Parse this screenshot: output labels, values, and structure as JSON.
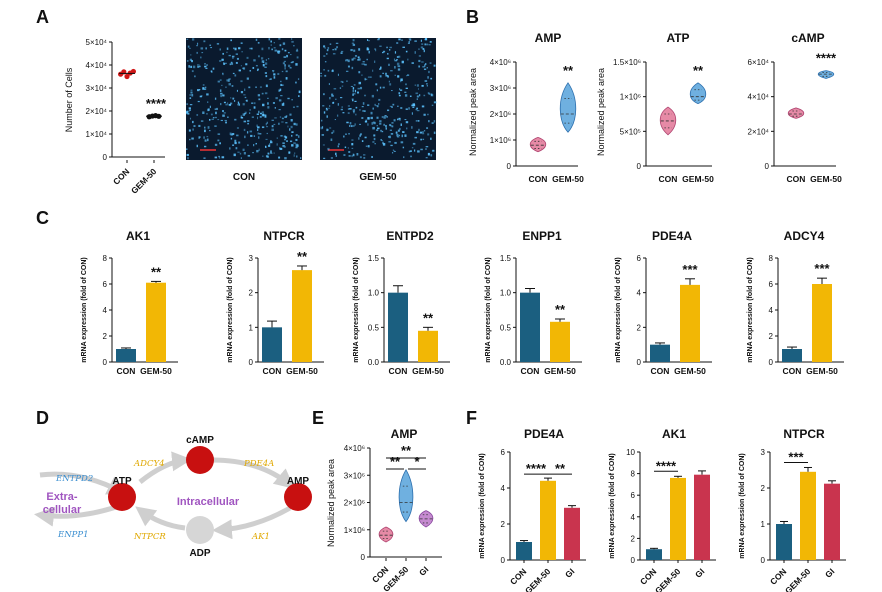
{
  "panel_letters": [
    "A",
    "B",
    "C",
    "D",
    "E",
    "F"
  ],
  "colors": {
    "con": "#1b5f80",
    "gem": "#f2b705",
    "gi": "#c9344e",
    "red": "#d01717",
    "violin_con": "#e68aa6",
    "violin_gem": "#6fb0e0",
    "violin_gi": "#c58ad0",
    "micro_bg": "#0a1a2e",
    "micro_dot": "#5cc3ff"
  },
  "panelA": {
    "ylabel": "Number of Cells",
    "yticks": [
      "0",
      "1×10⁴",
      "2×10⁴",
      "3×10⁴",
      "4×10⁴",
      "5×10⁴"
    ],
    "categories": [
      "CON",
      "GEM-50"
    ],
    "sig": "****",
    "image_labels": [
      "CON",
      "GEM-50"
    ]
  },
  "panelB": [
    {
      "title": "AMP",
      "ylabel": "Normalized peak area",
      "yticks": [
        "0",
        "1×10⁶",
        "2×10⁶",
        "3×10⁶",
        "4×10⁶"
      ],
      "sig": "**",
      "categories": [
        "CON",
        "GEM-50"
      ]
    },
    {
      "title": "ATP",
      "ylabel": "Normalized peak area",
      "yticks": [
        "0",
        "5×10⁵",
        "1×10⁶",
        "1.5×10⁶"
      ],
      "sig": "**",
      "categories": [
        "CON",
        "GEM-50"
      ]
    },
    {
      "title": "cAMP",
      "ylabel": "",
      "yticks": [
        "0",
        "2×10⁴",
        "4×10⁴",
        "6×10⁴"
      ],
      "sig": "****",
      "categories": [
        "CON",
        "GEM-50"
      ]
    }
  ],
  "panelC_ylabel": "mRNA expression (fold of CON)",
  "panelC": [
    {
      "title": "AK1",
      "yticks": [
        "0",
        "2",
        "4",
        "6",
        "8"
      ],
      "sig": "**",
      "categories": [
        "CON",
        "GEM-50"
      ]
    },
    {
      "title": "NTPCR",
      "yticks": [
        "0",
        "1",
        "2",
        "3"
      ],
      "sig": "**",
      "categories": [
        "CON",
        "GEM-50"
      ]
    },
    {
      "title": "ENTPD2",
      "yticks": [
        "0.0",
        "0.5",
        "1.0",
        "1.5"
      ],
      "sig": "**",
      "categories": [
        "CON",
        "GEM-50"
      ]
    },
    {
      "title": "ENPP1",
      "yticks": [
        "0.0",
        "0.5",
        "1.0",
        "1.5"
      ],
      "sig": "**",
      "categories": [
        "CON",
        "GEM-50"
      ]
    },
    {
      "title": "PDE4A",
      "yticks": [
        "0",
        "2",
        "4",
        "6"
      ],
      "sig": "***",
      "categories": [
        "CON",
        "GEM-50"
      ]
    },
    {
      "title": "ADCY4",
      "yticks": [
        "0",
        "2",
        "4",
        "6",
        "8"
      ],
      "sig": "***",
      "categories": [
        "CON",
        "GEM-50"
      ]
    }
  ],
  "panelD": {
    "extracellular": "Extra-\ncellular",
    "intracellular": "Intracellular",
    "nodes": {
      "atp": "ATP",
      "camp": "cAMP",
      "amp": "AMP",
      "adp": "ADP"
    },
    "enzymes": {
      "entpd2": "ENTPD2",
      "enpp1": "ENPP1",
      "adcy4": "ADCY4",
      "pde4a": "PDE4A",
      "ntpcr": "NTPCR",
      "ak1": "AK1"
    }
  },
  "panelE": {
    "title": "AMP",
    "ylabel": "Normalized peak area",
    "yticks": [
      "0",
      "1×10⁶",
      "2×10⁶",
      "3×10⁶",
      "4×10⁶"
    ],
    "categories": [
      "CON",
      "GEM-50",
      "GI"
    ],
    "sig": [
      "**",
      "**",
      "*"
    ]
  },
  "panelF": [
    {
      "title": "PDE4A",
      "yticks": [
        "0",
        "2",
        "4",
        "6"
      ],
      "sig": [
        "****",
        "**"
      ],
      "categories": [
        "CON",
        "GEM-50",
        "GI"
      ]
    },
    {
      "title": "AK1",
      "yticks": [
        "0",
        "2",
        "4",
        "6",
        "8",
        "10"
      ],
      "sig": [
        "****"
      ],
      "categories": [
        "CON",
        "GEM-50",
        "GI"
      ]
    },
    {
      "title": "NTPCR",
      "yticks": [
        "0",
        "1",
        "2",
        "3"
      ],
      "sig": [
        "***"
      ],
      "categories": [
        "CON",
        "GEM-50",
        "GI"
      ]
    }
  ],
  "chart_data": [
    {
      "id": "A",
      "type": "scatter",
      "title": "",
      "ylabel": "Number of Cells",
      "categories": [
        "CON",
        "GEM-50"
      ],
      "ylim": [
        0,
        50000
      ],
      "series": [
        {
          "name": "CON",
          "values": [
            36000,
            37000,
            35000,
            36500,
            37200
          ]
        },
        {
          "name": "GEM-50",
          "values": [
            17500,
            17800,
            18000,
            17700
          ]
        }
      ]
    },
    {
      "id": "B-AMP",
      "type": "violin",
      "title": "AMP",
      "ylabel": "Normalized peak area",
      "categories": [
        "CON",
        "GEM-50"
      ],
      "ylim": [
        0,
        4000000
      ],
      "medians": [
        800000,
        2000000
      ],
      "ranges": [
        [
          550000,
          1100000
        ],
        [
          1300000,
          3200000
        ]
      ]
    },
    {
      "id": "B-ATP",
      "type": "violin",
      "title": "ATP",
      "ylabel": "Normalized peak area",
      "categories": [
        "CON",
        "GEM-50"
      ],
      "ylim": [
        0,
        1500000
      ],
      "medians": [
        650000,
        1000000
      ],
      "ranges": [
        [
          450000,
          850000
        ],
        [
          900000,
          1200000
        ]
      ]
    },
    {
      "id": "B-cAMP",
      "type": "violin",
      "title": "cAMP",
      "ylabel": "",
      "categories": [
        "CON",
        "GEM-50"
      ],
      "ylim": [
        0,
        60000
      ],
      "medians": [
        30000,
        53000
      ],
      "ranges": [
        [
          27500,
          33500
        ],
        [
          50500,
          55000
        ]
      ]
    },
    {
      "id": "C-AK1",
      "type": "bar",
      "title": "AK1",
      "categories": [
        "CON",
        "GEM-50"
      ],
      "values": [
        1.0,
        6.1
      ],
      "errors": [
        0.08,
        0.1
      ],
      "ylim": [
        0,
        8
      ]
    },
    {
      "id": "C-NTPCR",
      "type": "bar",
      "title": "NTPCR",
      "categories": [
        "CON",
        "GEM-50"
      ],
      "values": [
        1.0,
        2.65
      ],
      "errors": [
        0.18,
        0.12
      ],
      "ylim": [
        0,
        3
      ]
    },
    {
      "id": "C-ENTPD2",
      "type": "bar",
      "title": "ENTPD2",
      "categories": [
        "CON",
        "GEM-50"
      ],
      "values": [
        1.0,
        0.45
      ],
      "errors": [
        0.1,
        0.05
      ],
      "ylim": [
        0,
        1.5
      ]
    },
    {
      "id": "C-ENPP1",
      "type": "bar",
      "title": "ENPP1",
      "categories": [
        "CON",
        "GEM-50"
      ],
      "values": [
        1.0,
        0.58
      ],
      "errors": [
        0.06,
        0.04
      ],
      "ylim": [
        0,
        1.5
      ]
    },
    {
      "id": "C-PDE4A",
      "type": "bar",
      "title": "PDE4A",
      "categories": [
        "CON",
        "GEM-50"
      ],
      "values": [
        1.0,
        4.45
      ],
      "errors": [
        0.1,
        0.35
      ],
      "ylim": [
        0,
        6
      ]
    },
    {
      "id": "C-ADCY4",
      "type": "bar",
      "title": "ADCY4",
      "categories": [
        "CON",
        "GEM-50"
      ],
      "values": [
        1.0,
        6.0
      ],
      "errors": [
        0.15,
        0.45
      ],
      "ylim": [
        0,
        8
      ]
    },
    {
      "id": "E-AMP",
      "type": "violin",
      "title": "AMP",
      "ylabel": "Normalized peak area",
      "categories": [
        "CON",
        "GEM-50",
        "GI"
      ],
      "ylim": [
        0,
        4000000
      ],
      "medians": [
        800000,
        2000000,
        1400000
      ],
      "ranges": [
        [
          550000,
          1100000
        ],
        [
          1300000,
          3200000
        ],
        [
          1100000,
          1700000
        ]
      ]
    },
    {
      "id": "F-PDE4A",
      "type": "bar",
      "title": "PDE4A",
      "categories": [
        "CON",
        "GEM-50",
        "GI"
      ],
      "values": [
        1.0,
        4.4,
        2.9
      ],
      "errors": [
        0.08,
        0.15,
        0.12
      ],
      "ylim": [
        0,
        6
      ]
    },
    {
      "id": "F-AK1",
      "type": "bar",
      "title": "AK1",
      "categories": [
        "CON",
        "GEM-50",
        "GI"
      ],
      "values": [
        1.0,
        7.6,
        7.9
      ],
      "errors": [
        0.08,
        0.15,
        0.35
      ],
      "ylim": [
        0,
        10
      ]
    },
    {
      "id": "F-NTPCR",
      "type": "bar",
      "title": "NTPCR",
      "categories": [
        "CON",
        "GEM-50",
        "GI"
      ],
      "values": [
        1.0,
        2.45,
        2.12
      ],
      "errors": [
        0.07,
        0.12,
        0.08
      ],
      "ylim": [
        0,
        3
      ]
    }
  ]
}
